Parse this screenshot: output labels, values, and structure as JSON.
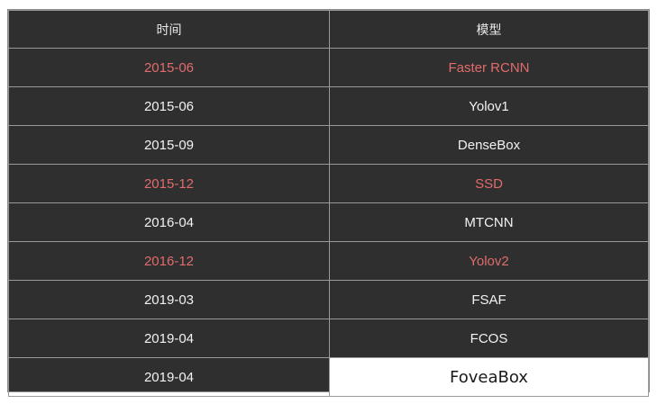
{
  "table": {
    "headers": [
      "时间",
      "模型"
    ],
    "rows": [
      {
        "time": "2015-06",
        "model": "Faster RCNN",
        "highlight": true
      },
      {
        "time": "2015-06",
        "model": "Yolov1",
        "highlight": false
      },
      {
        "time": "2015-09",
        "model": "DenseBox",
        "highlight": false
      },
      {
        "time": "2015-12",
        "model": "SSD",
        "highlight": true
      },
      {
        "time": "2016-04",
        "model": "MTCNN",
        "highlight": false
      },
      {
        "time": "2016-12",
        "model": "Yolov2",
        "highlight": true
      },
      {
        "time": "2019-03",
        "model": "FSAF",
        "highlight": false
      },
      {
        "time": "2019-04",
        "model": "FCOS",
        "highlight": false
      },
      {
        "time": "2019-04",
        "model": "FoveaBox",
        "highlight": false
      }
    ]
  },
  "colors": {
    "table_bg": "#2f2f2f",
    "text": "#f2f2f2",
    "highlight_text": "#e06c6c",
    "border": "#9a9a9a"
  }
}
